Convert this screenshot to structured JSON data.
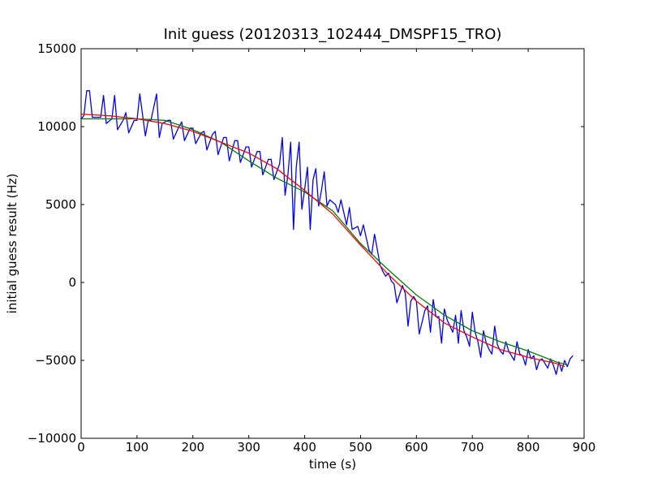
{
  "chart_data": {
    "type": "line",
    "title": "Init guess (20120313_102444_DMSPF15_TRO)",
    "xlabel": "time (s)",
    "ylabel": "initial guess result (Hz)",
    "xlim": [
      0,
      900
    ],
    "ylim": [
      -10000,
      15000
    ],
    "xticks": [
      0,
      100,
      200,
      300,
      400,
      500,
      600,
      700,
      800,
      900
    ],
    "yticks": [
      -10000,
      -5000,
      0,
      5000,
      10000,
      15000
    ],
    "xtick_labels": [
      "0",
      "100",
      "200",
      "300",
      "400",
      "500",
      "600",
      "700",
      "800",
      "900"
    ],
    "ytick_labels": [
      "−10000",
      "−5000",
      "0",
      "5000",
      "10000",
      "15000"
    ],
    "grid": false,
    "legend": "none",
    "series": [
      {
        "color": "#0000ff",
        "x": [
          0,
          5,
          10,
          15,
          20,
          25,
          35,
          40,
          45,
          55,
          60,
          65,
          75,
          80,
          85,
          95,
          100,
          105,
          115,
          120,
          125,
          135,
          140,
          145,
          155,
          160,
          165,
          175,
          180,
          185,
          195,
          200,
          205,
          215,
          220,
          225,
          235,
          240,
          245,
          255,
          260,
          265,
          275,
          280,
          285,
          295,
          300,
          305,
          315,
          320,
          325,
          335,
          340,
          345,
          355,
          360,
          365,
          370,
          375,
          380,
          385,
          390,
          395,
          400,
          405,
          410,
          415,
          420,
          425,
          430,
          435,
          440,
          445,
          455,
          460,
          465,
          475,
          480,
          485,
          495,
          500,
          505,
          515,
          520,
          525,
          535,
          540,
          545,
          550,
          555,
          560,
          565,
          575,
          580,
          585,
          590,
          595,
          600,
          605,
          615,
          620,
          625,
          630,
          635,
          640,
          645,
          650,
          655,
          660,
          665,
          670,
          675,
          680,
          685,
          690,
          695,
          700,
          705,
          710,
          715,
          720,
          725,
          730,
          735,
          740,
          745,
          750,
          755,
          760,
          765,
          770,
          775,
          780,
          785,
          790,
          795,
          800,
          805,
          810,
          815,
          820,
          825,
          830,
          835,
          840,
          845,
          850,
          855,
          860,
          865,
          870,
          875,
          880
        ],
        "y": [
          10500,
          10700,
          12300,
          12300,
          10600,
          10600,
          10600,
          12000,
          10200,
          10500,
          12000,
          9800,
          10400,
          10900,
          9600,
          10400,
          10400,
          12100,
          9400,
          10400,
          10400,
          12100,
          9300,
          10200,
          10400,
          10400,
          9200,
          10000,
          10300,
          9100,
          9900,
          9900,
          8900,
          9600,
          9700,
          8500,
          9500,
          9700,
          8200,
          9300,
          9300,
          7800,
          9100,
          9100,
          7700,
          8700,
          8700,
          7400,
          8400,
          8400,
          6900,
          7900,
          7900,
          6600,
          7600,
          9300,
          5600,
          6900,
          9000,
          3400,
          7400,
          9000,
          4700,
          6000,
          7400,
          3400,
          6600,
          7300,
          4900,
          5900,
          7100,
          4900,
          5300,
          5000,
          4500,
          5300,
          3700,
          4800,
          3400,
          3600,
          3000,
          3700,
          2100,
          1800,
          3100,
          1100,
          700,
          400,
          600,
          100,
          -100,
          -1300,
          -200,
          -700,
          -2800,
          -1200,
          -900,
          -1200,
          -3300,
          -1800,
          -1500,
          -3200,
          -1100,
          -2200,
          -2200,
          -3900,
          -1700,
          -2400,
          -2800,
          -3200,
          -2100,
          -3900,
          -1800,
          -3100,
          -3500,
          -4100,
          -1900,
          -3200,
          -3800,
          -4800,
          -3100,
          -3900,
          -4300,
          -4600,
          -2800,
          -4000,
          -4400,
          -4600,
          -3800,
          -4400,
          -4700,
          -5000,
          -3800,
          -4600,
          -4700,
          -5300,
          -4300,
          -4900,
          -4700,
          -5600,
          -5000,
          -4900,
          -5200,
          -5500,
          -4900,
          -5300,
          -5900,
          -5100,
          -5700,
          -5000,
          -5400,
          -4900,
          -4700
        ]
      },
      {
        "color": "#008000",
        "x": [
          0,
          50,
          100,
          150,
          200,
          250,
          300,
          350,
          400,
          450,
          500,
          550,
          600,
          650,
          700,
          750,
          800,
          850,
          870
        ],
        "y": [
          10500,
          10500,
          10500,
          10400,
          9800,
          9000,
          7800,
          6700,
          5800,
          4600,
          2500,
          800,
          -800,
          -2100,
          -3100,
          -3800,
          -4400,
          -5100,
          -5300
        ]
      },
      {
        "color": "#ff0000",
        "x": [
          0,
          50,
          100,
          150,
          200,
          250,
          300,
          350,
          400,
          450,
          500,
          550,
          600,
          650,
          700,
          750,
          800,
          850,
          865
        ],
        "y": [
          10800,
          10700,
          10500,
          10200,
          9700,
          9000,
          8300,
          7300,
          5900,
          4400,
          2400,
          500,
          -1200,
          -2600,
          -3500,
          -4300,
          -4800,
          -5200,
          -5400
        ]
      }
    ]
  }
}
